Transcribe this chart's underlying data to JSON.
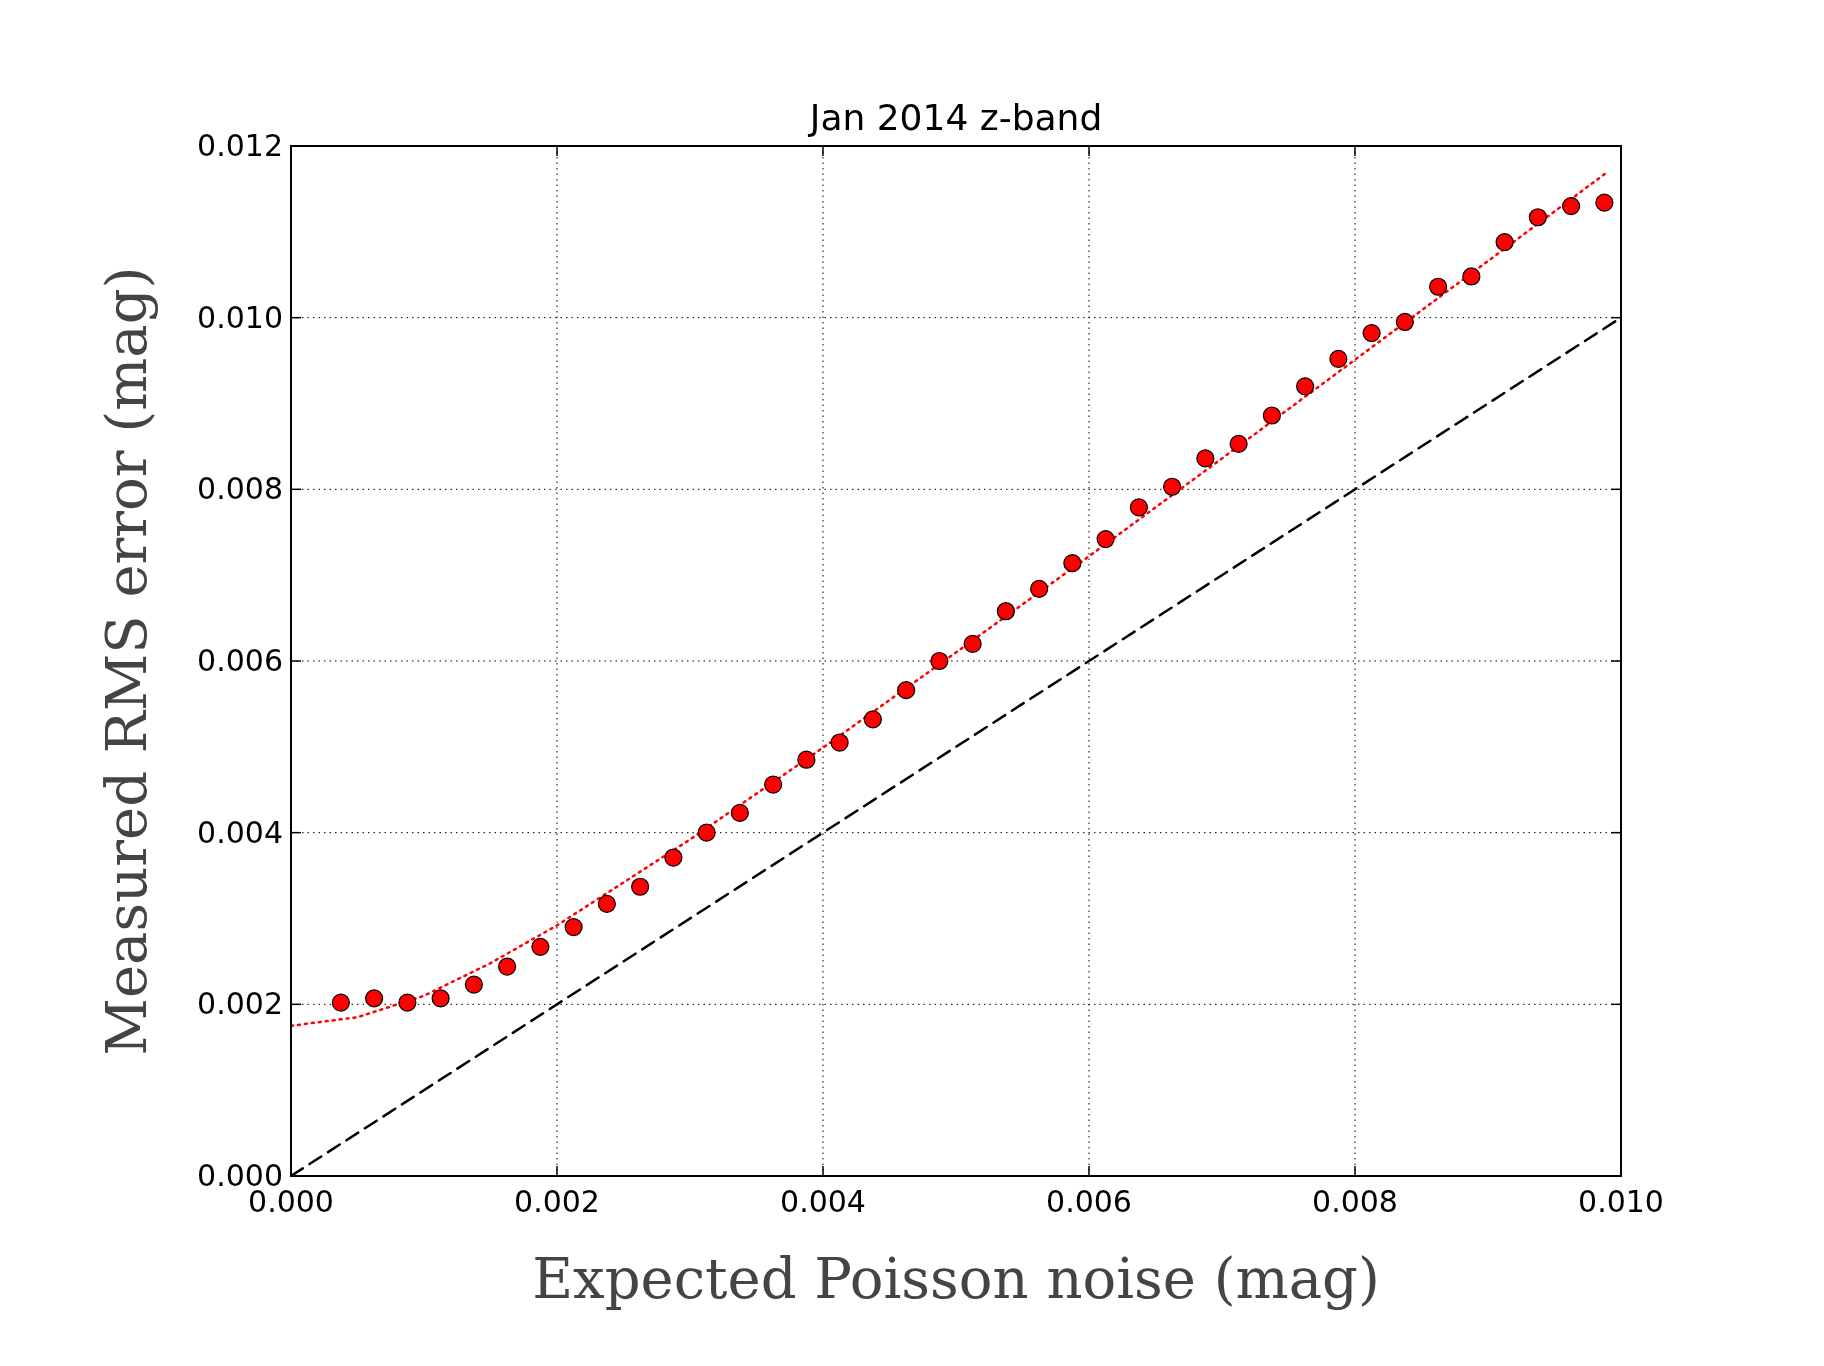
{
  "chart_data": {
    "type": "scatter",
    "title": "Jan 2014 z-band",
    "xlabel": "Expected Poisson noise (mag)",
    "ylabel": "Measured RMS error (mag)",
    "xlim": [
      0,
      0.01
    ],
    "ylim": [
      0,
      0.012
    ],
    "xticks": [
      {
        "value": 0,
        "label": "0.000"
      },
      {
        "value": 0.002,
        "label": "0.002"
      },
      {
        "value": 0.004,
        "label": "0.004"
      },
      {
        "value": 0.006,
        "label": "0.006"
      },
      {
        "value": 0.008,
        "label": "0.008"
      },
      {
        "value": 0.01,
        "label": "0.010"
      }
    ],
    "yticks": [
      {
        "value": 0,
        "label": "0.000"
      },
      {
        "value": 0.002,
        "label": "0.002"
      },
      {
        "value": 0.004,
        "label": "0.004"
      },
      {
        "value": 0.006,
        "label": "0.006"
      },
      {
        "value": 0.008,
        "label": "0.008"
      },
      {
        "value": 0.01,
        "label": "0.010"
      },
      {
        "value": 0.012,
        "label": "0.012"
      }
    ],
    "grid": true,
    "series": [
      {
        "type": "line",
        "color": "#000000",
        "line_style": "dashed",
        "marker": "none",
        "x": [
          0,
          0.01
        ],
        "values": [
          0,
          0.01
        ]
      },
      {
        "type": "line",
        "color": "#ff0000",
        "line_style": "dotted",
        "marker": "none",
        "x": [
          0,
          0.0005,
          0.001,
          0.0015,
          0.002,
          0.003,
          0.004,
          0.005,
          0.006,
          0.007,
          0.008,
          0.009,
          0.0099
        ],
        "values": [
          0.00175,
          0.00185,
          0.0021,
          0.00248,
          0.00292,
          0.00392,
          0.00499,
          0.0061,
          0.00722,
          0.00836,
          0.00951,
          0.01066,
          0.0117
        ]
      },
      {
        "color": "#ff0000",
        "marker": "circle",
        "x": [
          0.000375,
          0.000625,
          0.000875,
          0.001125,
          0.001375,
          0.001625,
          0.001875,
          0.002125,
          0.002375,
          0.002625,
          0.002875,
          0.003125,
          0.003375,
          0.003625,
          0.003875,
          0.004125,
          0.004375,
          0.004625,
          0.004875,
          0.005125,
          0.005375,
          0.005625,
          0.005875,
          0.006125,
          0.006375,
          0.006625,
          0.006875,
          0.007125,
          0.007375,
          0.007625,
          0.007875,
          0.008125,
          0.008375,
          0.008625,
          0.008875,
          0.009125,
          0.009375,
          0.009625,
          0.009875
        ],
        "values": [
          0.00202,
          0.00207,
          0.00202,
          0.00207,
          0.00223,
          0.00244,
          0.00267,
          0.0029,
          0.00317,
          0.00337,
          0.00371,
          0.004,
          0.00423,
          0.00456,
          0.00485,
          0.00505,
          0.00532,
          0.00566,
          0.006,
          0.0062,
          0.00658,
          0.00684,
          0.00714,
          0.00742,
          0.00779,
          0.00803,
          0.00836,
          0.00853,
          0.00886,
          0.0092,
          0.00952,
          0.00982,
          0.00995,
          0.01036,
          0.01048,
          0.01088,
          0.01117,
          0.0113,
          0.01134
        ]
      }
    ]
  }
}
